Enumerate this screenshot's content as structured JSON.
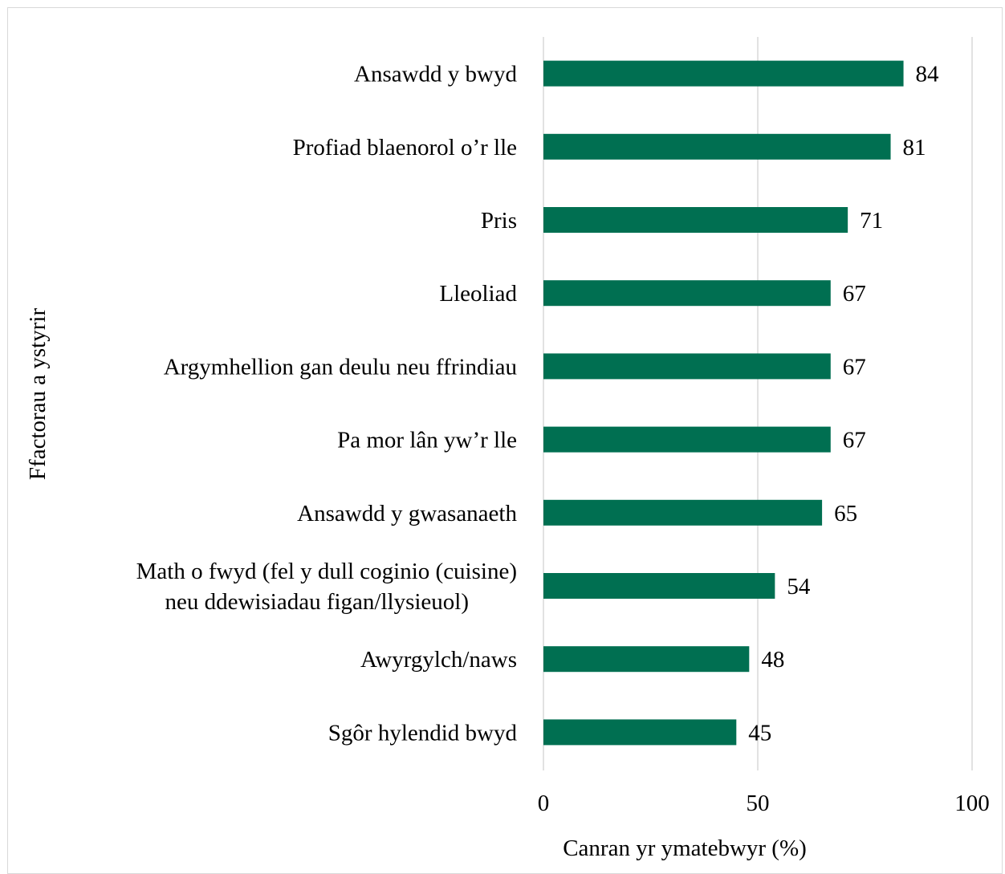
{
  "chart_data": {
    "type": "bar",
    "orientation": "horizontal",
    "categories": [
      "Ansawdd y bwyd",
      "Profiad blaenorol o’r lle",
      "Pris",
      "Lleoliad",
      "Argymhellion gan deulu neu ffrindiau",
      "Pa mor lân yw’r lle",
      "Ansawdd y gwasanaeth",
      "Math o fwyd (fel y dull coginio (cuisine) neu ddewisiadau figan/llysieuol)",
      "Awyrgylch/naws",
      "Sgôr hylendid bwyd"
    ],
    "category_lines": [
      [
        "Ansawdd y bwyd"
      ],
      [
        "Profiad blaenorol o’r lle"
      ],
      [
        "Pris"
      ],
      [
        "Lleoliad"
      ],
      [
        "Argymhellion gan deulu neu ffrindiau"
      ],
      [
        "Pa mor lân yw’r lle"
      ],
      [
        "Ansawdd y gwasanaeth"
      ],
      [
        "Math o fwyd (fel y dull coginio (cuisine)",
        "neu ddewisiadau figan/llysieuol)"
      ],
      [
        "Awyrgylch/naws"
      ],
      [
        "Sgôr hylendid bwyd"
      ]
    ],
    "values": [
      84,
      81,
      71,
      67,
      67,
      67,
      65,
      54,
      48,
      45
    ],
    "xlabel": "Canran yr ymatebwyr (%)",
    "ylabel": "Ffactorau a ystyrir",
    "xlim": [
      0,
      100
    ],
    "xticks": [
      0,
      50,
      100
    ],
    "grid": "vertical",
    "legend": "none",
    "bar_color": "#006f51",
    "grid_color": "#d9d9d9"
  }
}
